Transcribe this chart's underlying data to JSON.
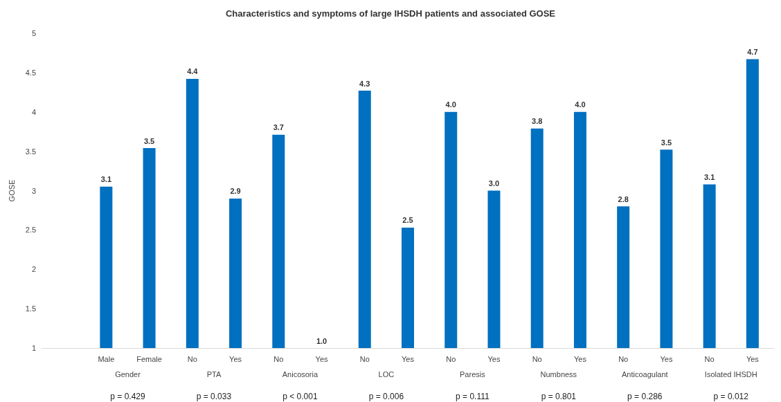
{
  "chart_data": {
    "type": "bar",
    "title": "Characteristics and symptoms of large IHSDH patients and associated GOSE",
    "ylabel": "GOSE",
    "categories": [
      null,
      "Male",
      "Female",
      "No",
      "Yes",
      "No",
      "Yes",
      "No",
      "Yes",
      "No",
      "Yes",
      "No",
      "Yes",
      "No",
      "Yes",
      "No",
      "Yes"
    ],
    "values": [
      null,
      3.05,
      3.54,
      4.42,
      2.9,
      3.71,
      1.0,
      4.27,
      2.53,
      4.0,
      3.0,
      3.79,
      4.0,
      2.8,
      3.52,
      3.08,
      4.67
    ],
    "value_labels": [
      null,
      "3.1",
      "3.5",
      "4.4",
      "2.9",
      "3.7",
      "1.0",
      "4.3",
      "2.5",
      "4.0",
      "3.0",
      "3.8",
      "4.0",
      "2.8",
      "3.5",
      "3.1",
      "4.7"
    ],
    "color": "#0070c0",
    "ylim": [
      1,
      5
    ],
    "yticks": [
      1,
      1.5,
      2,
      2.5,
      3,
      3.5,
      4,
      4.5,
      5
    ],
    "grid": false,
    "annotations": [
      "Gender",
      "PTA",
      "Anicosoria",
      "LOC",
      "Paresis",
      "Numbness",
      "Anticoagulant",
      "Isolated IHSDH",
      "p = 0.429",
      "p = 0.033",
      "p < 0.001",
      "p = 0.006",
      "p = 0.111",
      "p = 0.801",
      "p = 0.286",
      "p = 0.012"
    ]
  }
}
